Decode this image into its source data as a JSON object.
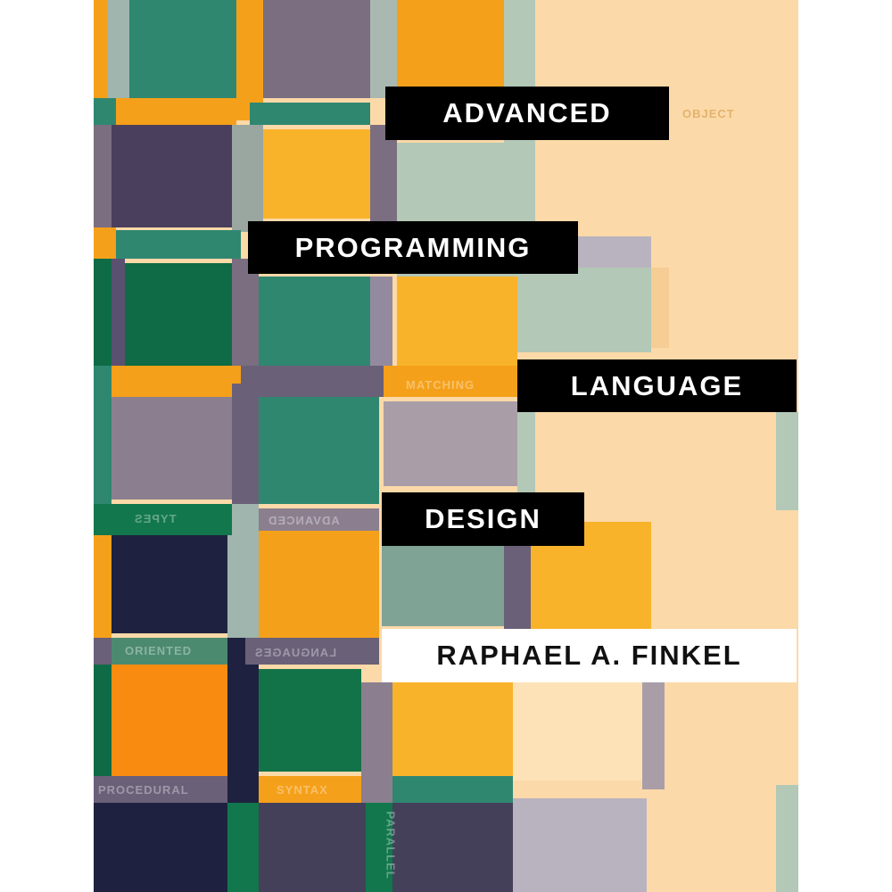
{
  "cover": {
    "title_lines": [
      "ADVANCED",
      "PROGRAMMING",
      "LANGUAGE",
      "DESIGN"
    ],
    "author": "RAPHAEL A. FINKEL",
    "background_words": [
      "OBJECT",
      "MATCHING",
      "TYPES",
      "ADVANCED",
      "ORIENTED",
      "LANGUAGES",
      "PROCEDURAL",
      "SYNTAX",
      "PARALLEL"
    ],
    "colors": {
      "orange": "#f5a01a",
      "yellow": "#f8b32a",
      "teal": "#2f8770",
      "dark_green": "#0f6b45",
      "purple_gray": "#7a6e80",
      "navy": "#1e2240",
      "sage": "#b3c8b6",
      "peach": "#fcd9a8",
      "title_box": "#000000"
    }
  }
}
